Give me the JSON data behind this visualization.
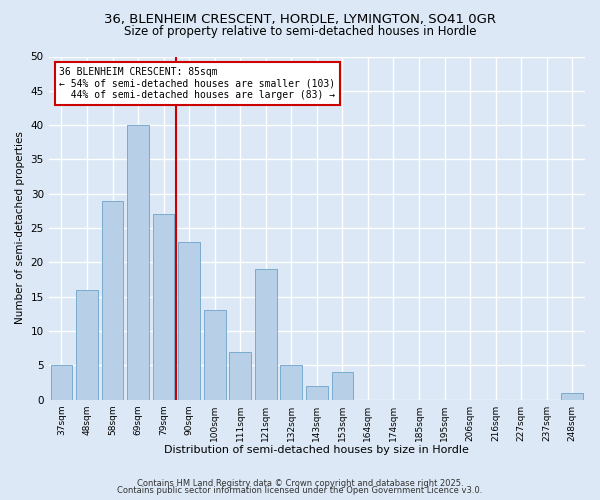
{
  "title_line1": "36, BLENHEIM CRESCENT, HORDLE, LYMINGTON, SO41 0GR",
  "title_line2": "Size of property relative to semi-detached houses in Hordle",
  "xlabel": "Distribution of semi-detached houses by size in Hordle",
  "ylabel": "Number of semi-detached properties",
  "bar_labels": [
    "37sqm",
    "48sqm",
    "58sqm",
    "69sqm",
    "79sqm",
    "90sqm",
    "100sqm",
    "111sqm",
    "121sqm",
    "132sqm",
    "143sqm",
    "153sqm",
    "164sqm",
    "174sqm",
    "185sqm",
    "195sqm",
    "206sqm",
    "216sqm",
    "227sqm",
    "237sqm",
    "248sqm"
  ],
  "bar_values": [
    5,
    16,
    29,
    40,
    27,
    23,
    13,
    7,
    19,
    5,
    2,
    4,
    0,
    0,
    0,
    0,
    0,
    0,
    0,
    0,
    1
  ],
  "bar_color": "#b8cfe8",
  "bar_edge_color": "#7aaad0",
  "property_line_x": 4.5,
  "annotation_text": "36 BLENHEIM CRESCENT: 85sqm\n← 54% of semi-detached houses are smaller (103)\n  44% of semi-detached houses are larger (83) →",
  "annotation_box_color": "#ffffff",
  "annotation_box_edge_color": "#cc0000",
  "vline_color": "#cc0000",
  "background_color": "#dce8f5",
  "grid_color": "#ffffff",
  "ylim": [
    0,
    50
  ],
  "yticks": [
    0,
    5,
    10,
    15,
    20,
    25,
    30,
    35,
    40,
    45,
    50
  ],
  "footer_line1": "Contains HM Land Registry data © Crown copyright and database right 2025.",
  "footer_line2": "Contains public sector information licensed under the Open Government Licence v3.0."
}
